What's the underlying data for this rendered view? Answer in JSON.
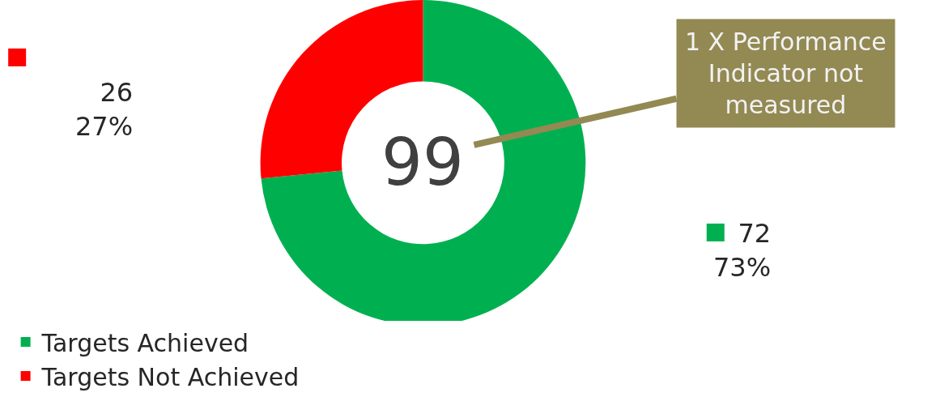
{
  "chart_data": {
    "type": "donut",
    "categories": [
      "Targets Achieved",
      "Targets Not Achieved"
    ],
    "values": [
      72,
      26
    ],
    "colors": [
      "#00b050",
      "#ff0000"
    ],
    "value_labels": [
      "72\n73%",
      "26\n27%"
    ],
    "annotations": [
      "99",
      "1 X Performance Indicator not measured"
    ],
    "legend": "bottom"
  }
}
